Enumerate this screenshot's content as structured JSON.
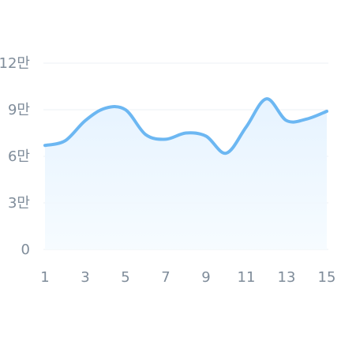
{
  "chart_data": {
    "type": "area",
    "x": [
      1,
      2,
      3,
      4,
      5,
      6,
      7,
      8,
      9,
      10,
      11,
      12,
      13,
      14,
      15
    ],
    "x_tick_labels": [
      "1",
      "3",
      "5",
      "7",
      "9",
      "11",
      "13",
      "15"
    ],
    "series": [
      {
        "values": [
          67000,
          70000,
          83000,
          91000,
          90000,
          74000,
          71000,
          75000,
          73000,
          62000,
          79000,
          97000,
          83000,
          84000,
          89000
        ]
      }
    ],
    "y_tick_labels": [
      "0",
      "3만",
      "6만",
      "9만",
      "12만"
    ],
    "y_tick_values": [
      0,
      30000,
      60000,
      90000,
      120000
    ],
    "ylim": [
      0,
      120000
    ],
    "xlim": [
      1,
      15
    ],
    "grid": true,
    "line_color": "#6cb7f2",
    "fill_color": "#e9f5ff",
    "legend": false
  }
}
